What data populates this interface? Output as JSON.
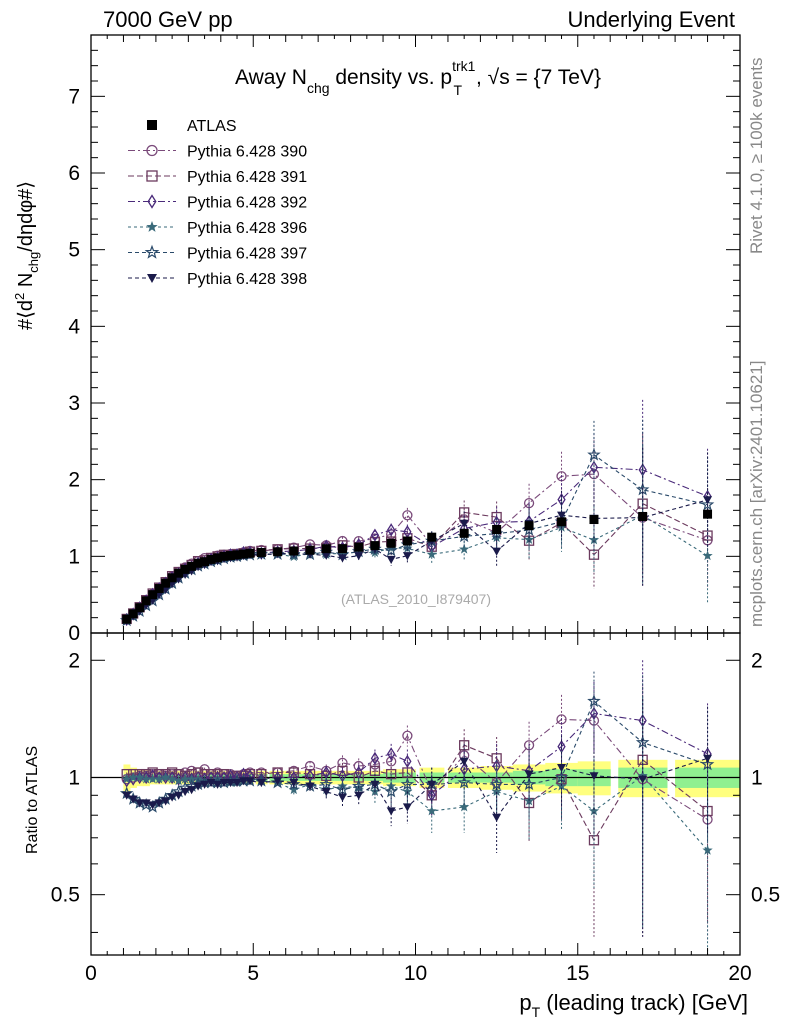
{
  "header": {
    "left": "7000 GeV pp",
    "right": "Underlying Event"
  },
  "side_labels": {
    "rivet": "Rivet 4.1.0, ≥ 100k events",
    "mcplots": "mcplots.cern.ch [arXiv:2401.10621]"
  },
  "colors": {
    "atlas": "#000000",
    "s390": "#7a4a7a",
    "s391": "#6b3a5e",
    "s392": "#4a2a7a",
    "s396": "#3a6a7a",
    "s397": "#2a4a6a",
    "s398": "#1a1a4a",
    "band_yellow": "#ffff7f",
    "band_green": "#90f090"
  },
  "chart_data": {
    "type": "scatter",
    "title_parts": {
      "pre": "Away N",
      "sub1": "chg",
      "mid": " density vs. p",
      "sup": "trk1",
      "sub2": "T",
      "post": ", √s = {7 TeV}"
    },
    "watermark": "(ATLAS_2010_I879407)",
    "ylabel": "#⟨d² N_chg/dηdφ#⟩",
    "xlabel": "p_T (leading track) [GeV]",
    "ratio_ylabel": "Ratio to ATLAS",
    "xlim": [
      0,
      20
    ],
    "ylim": [
      0,
      7.8
    ],
    "ratio_ylim": [
      0.35,
      2.35
    ],
    "x_ticks": [
      0,
      5,
      10,
      15,
      20
    ],
    "y_ticks": [
      0,
      1,
      2,
      3,
      4,
      5,
      6,
      7
    ],
    "ratio_ticks": [
      0.5,
      1,
      2
    ],
    "x": [
      1.1,
      1.3,
      1.5,
      1.7,
      1.9,
      2.1,
      2.3,
      2.5,
      2.7,
      2.9,
      3.1,
      3.3,
      3.5,
      3.7,
      3.9,
      4.1,
      4.3,
      4.5,
      4.7,
      4.9,
      5.25,
      5.75,
      6.25,
      6.75,
      7.25,
      7.75,
      8.25,
      8.75,
      9.25,
      9.75,
      10.5,
      11.5,
      12.5,
      13.5,
      14.5,
      15.5,
      17.0,
      19.0
    ],
    "legend": [
      {
        "label": "ATLAS",
        "key": "atlas"
      },
      {
        "label": "Pythia 6.428 390",
        "key": "s390"
      },
      {
        "label": "Pythia 6.428 391",
        "key": "s391"
      },
      {
        "label": "Pythia 6.428 392",
        "key": "s392"
      },
      {
        "label": "Pythia 6.428 396",
        "key": "s396"
      },
      {
        "label": "Pythia 6.428 397",
        "key": "s397"
      },
      {
        "label": "Pythia 6.428 398",
        "key": "s398"
      }
    ],
    "data": {
      "values": [
        0.18,
        0.25,
        0.33,
        0.42,
        0.5,
        0.58,
        0.65,
        0.72,
        0.78,
        0.83,
        0.87,
        0.91,
        0.93,
        0.96,
        0.98,
        1.0,
        1.01,
        1.02,
        1.03,
        1.04,
        1.05,
        1.06,
        1.07,
        1.08,
        1.1,
        1.1,
        1.12,
        1.14,
        1.17,
        1.2,
        1.25,
        1.3,
        1.35,
        1.4,
        1.45,
        1.48,
        1.52,
        1.55
      ],
      "band_inner": [
        0.02,
        0.02,
        0.02,
        0.02,
        0.02,
        0.02,
        0.02,
        0.02,
        0.02,
        0.02,
        0.02,
        0.02,
        0.02,
        0.02,
        0.02,
        0.02,
        0.02,
        0.02,
        0.02,
        0.02,
        0.02,
        0.02,
        0.02,
        0.02,
        0.02,
        0.02,
        0.02,
        0.02,
        0.03,
        0.03,
        0.03,
        0.03,
        0.03,
        0.04,
        0.05,
        0.05,
        0.06,
        0.06
      ],
      "band_outer": [
        0.08,
        0.06,
        0.05,
        0.05,
        0.04,
        0.04,
        0.04,
        0.04,
        0.04,
        0.04,
        0.04,
        0.04,
        0.04,
        0.04,
        0.04,
        0.04,
        0.04,
        0.04,
        0.04,
        0.04,
        0.04,
        0.04,
        0.04,
        0.04,
        0.04,
        0.04,
        0.04,
        0.04,
        0.05,
        0.05,
        0.06,
        0.06,
        0.07,
        0.08,
        0.09,
        0.1,
        0.11,
        0.11
      ]
    },
    "series": [
      {
        "name": "Pythia 6.428 390",
        "key": "s390",
        "marker": "circle",
        "dash": "7,3,2,3",
        "ratio": [
          0.99,
          1.0,
          1.01,
          1.01,
          1.02,
          1.02,
          1.01,
          1.02,
          1.02,
          1.03,
          1.04,
          1.03,
          1.05,
          1.02,
          1.03,
          1.02,
          1.02,
          1.01,
          1.02,
          1.03,
          1.03,
          1.03,
          1.04,
          1.07,
          1.04,
          1.09,
          1.07,
          1.08,
          1.1,
          1.28,
          0.92,
          1.14,
          0.97,
          1.21,
          1.41,
          1.4,
          0.99,
          0.78
        ],
        "ratio_err": [
          0.01,
          0.01,
          0.01,
          0.01,
          0.01,
          0.01,
          0.01,
          0.01,
          0.01,
          0.01,
          0.01,
          0.01,
          0.01,
          0.01,
          0.01,
          0.01,
          0.01,
          0.01,
          0.01,
          0.01,
          0.02,
          0.02,
          0.03,
          0.03,
          0.04,
          0.05,
          0.05,
          0.06,
          0.07,
          0.08,
          0.1,
          0.12,
          0.15,
          0.18,
          0.22,
          0.3,
          0.6,
          0.4
        ]
      },
      {
        "name": "Pythia 6.428 391",
        "key": "s391",
        "marker": "square",
        "dash": "6,3",
        "ratio": [
          1.02,
          1.02,
          1.02,
          1.02,
          1.03,
          1.02,
          1.02,
          1.03,
          1.02,
          1.01,
          1.02,
          1.03,
          1.02,
          1.02,
          1.02,
          1.02,
          1.0,
          1.01,
          1.01,
          1.02,
          1.02,
          1.03,
          1.03,
          1.02,
          1.01,
          1.04,
          1.0,
          1.04,
          1.02,
          1.03,
          0.9,
          1.21,
          1.12,
          0.86,
          0.99,
          0.69,
          1.11,
          0.82
        ],
        "ratio_err": [
          0.01,
          0.01,
          0.01,
          0.01,
          0.01,
          0.01,
          0.01,
          0.01,
          0.01,
          0.01,
          0.01,
          0.01,
          0.01,
          0.01,
          0.01,
          0.01,
          0.01,
          0.01,
          0.01,
          0.01,
          0.02,
          0.02,
          0.03,
          0.03,
          0.04,
          0.05,
          0.05,
          0.06,
          0.07,
          0.08,
          0.1,
          0.12,
          0.15,
          0.18,
          0.22,
          0.3,
          0.6,
          0.4
        ]
      },
      {
        "name": "Pythia 6.428 392",
        "key": "s392",
        "marker": "diamond",
        "dash": "7,3,2,3",
        "ratio": [
          0.98,
          0.99,
          1.0,
          1.0,
          1.01,
          1.0,
          1.0,
          1.0,
          0.99,
          1.0,
          0.99,
          1.0,
          0.99,
          1.0,
          1.0,
          1.0,
          1.01,
          1.0,
          1.02,
          1.01,
          0.99,
          1.0,
          1.0,
          1.01,
          1.03,
          1.01,
          1.03,
          1.12,
          1.15,
          1.1,
          0.9,
          1.05,
          1.07,
          1.04,
          1.2,
          1.46,
          1.4,
          1.15
        ],
        "ratio_err": [
          0.01,
          0.01,
          0.01,
          0.01,
          0.01,
          0.01,
          0.01,
          0.01,
          0.01,
          0.01,
          0.01,
          0.01,
          0.01,
          0.01,
          0.01,
          0.01,
          0.01,
          0.01,
          0.01,
          0.01,
          0.02,
          0.02,
          0.03,
          0.03,
          0.04,
          0.05,
          0.05,
          0.06,
          0.07,
          0.08,
          0.1,
          0.12,
          0.15,
          0.18,
          0.22,
          0.3,
          0.6,
          0.4
        ]
      },
      {
        "name": "Pythia 6.428 396",
        "key": "s396",
        "marker": "star",
        "dash": "3,3",
        "ratio": [
          0.99,
          1.0,
          1.0,
          0.99,
          0.99,
          0.99,
          1.0,
          0.99,
          0.98,
          0.99,
          0.99,
          0.99,
          0.98,
          0.98,
          0.99,
          0.98,
          0.97,
          0.97,
          0.98,
          0.98,
          0.98,
          0.97,
          0.93,
          0.96,
          0.93,
          0.95,
          0.94,
          0.92,
          0.95,
          0.92,
          0.82,
          0.84,
          0.92,
          0.87,
          0.95,
          0.82,
          1.01,
          0.65
        ],
        "ratio_err": [
          0.01,
          0.01,
          0.01,
          0.01,
          0.01,
          0.01,
          0.01,
          0.01,
          0.01,
          0.01,
          0.01,
          0.01,
          0.01,
          0.01,
          0.01,
          0.01,
          0.01,
          0.01,
          0.01,
          0.01,
          0.02,
          0.02,
          0.03,
          0.03,
          0.04,
          0.05,
          0.05,
          0.06,
          0.07,
          0.08,
          0.1,
          0.12,
          0.15,
          0.18,
          0.22,
          0.3,
          0.6,
          0.4
        ]
      },
      {
        "name": "Pythia 6.428 397",
        "key": "s397",
        "marker": "openstar",
        "dash": "4,3",
        "ratio": [
          0.91,
          0.88,
          0.86,
          0.85,
          0.84,
          0.86,
          0.88,
          0.9,
          0.92,
          0.94,
          0.95,
          0.96,
          0.97,
          0.97,
          0.97,
          0.97,
          0.98,
          0.98,
          0.98,
          0.98,
          0.98,
          0.97,
          0.96,
          0.95,
          0.96,
          0.93,
          0.95,
          0.96,
          0.92,
          0.96,
          0.96,
          0.97,
          0.96,
          0.96,
          1.0,
          1.57,
          1.23,
          1.08
        ],
        "ratio_err": [
          0.01,
          0.01,
          0.01,
          0.01,
          0.01,
          0.01,
          0.01,
          0.01,
          0.01,
          0.01,
          0.01,
          0.01,
          0.01,
          0.01,
          0.01,
          0.01,
          0.01,
          0.01,
          0.01,
          0.01,
          0.02,
          0.02,
          0.03,
          0.03,
          0.04,
          0.05,
          0.05,
          0.06,
          0.07,
          0.08,
          0.1,
          0.12,
          0.15,
          0.18,
          0.22,
          0.3,
          0.6,
          0.4
        ]
      },
      {
        "name": "Pythia 6.428 398",
        "key": "s398",
        "marker": "triangle",
        "dash": "4,3",
        "ratio": [
          0.9,
          0.88,
          0.86,
          0.86,
          0.85,
          0.86,
          0.87,
          0.89,
          0.9,
          0.92,
          0.93,
          0.95,
          0.96,
          0.97,
          0.96,
          0.97,
          0.97,
          0.97,
          0.98,
          0.98,
          0.97,
          0.98,
          0.97,
          0.95,
          0.92,
          0.89,
          0.9,
          0.96,
          0.82,
          0.84,
          0.96,
          1.1,
          0.79,
          1.02,
          1.06,
          1.01,
          0.99,
          1.12
        ],
        "ratio_err": [
          0.01,
          0.01,
          0.01,
          0.01,
          0.01,
          0.01,
          0.01,
          0.01,
          0.01,
          0.01,
          0.01,
          0.01,
          0.01,
          0.01,
          0.01,
          0.01,
          0.01,
          0.01,
          0.01,
          0.01,
          0.02,
          0.02,
          0.03,
          0.03,
          0.04,
          0.05,
          0.05,
          0.06,
          0.07,
          0.08,
          0.1,
          0.12,
          0.15,
          0.18,
          0.22,
          0.3,
          0.6,
          0.4
        ]
      }
    ]
  }
}
